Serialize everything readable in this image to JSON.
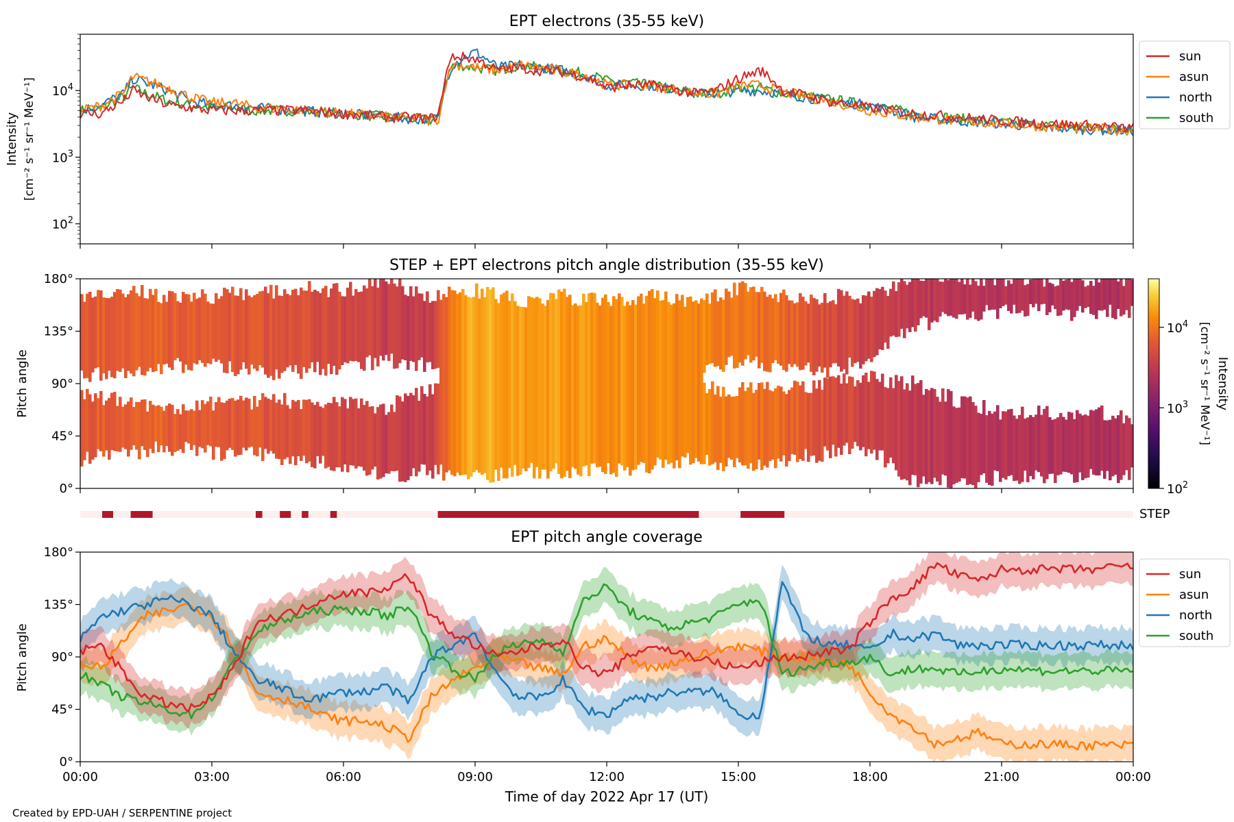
{
  "footer": "Created by EPD-UAH / SERPENTINE project",
  "x_axis": {
    "label": "Time of day 2022 Apr 17 (UT)",
    "range_hours": [
      0,
      24
    ],
    "ticks": [
      {
        "h": 0,
        "label": "00:00"
      },
      {
        "h": 3,
        "label": "03:00"
      },
      {
        "h": 6,
        "label": "06:00"
      },
      {
        "h": 9,
        "label": "09:00"
      },
      {
        "h": 12,
        "label": "12:00"
      },
      {
        "h": 15,
        "label": "15:00"
      },
      {
        "h": 18,
        "label": "18:00"
      },
      {
        "h": 21,
        "label": "21:00"
      },
      {
        "h": 24,
        "label": "00:00"
      }
    ]
  },
  "colors": {
    "sun": "#d62728",
    "asun": "#ff7f0e",
    "north": "#1f77b4",
    "south": "#2ca02c",
    "step_on": "#b2182b",
    "step_off": "#fdf0ec"
  },
  "angle_ticks": [
    {
      "v": 0,
      "label": "0°"
    },
    {
      "v": 45,
      "label": "45°"
    },
    {
      "v": 90,
      "label": "90°"
    },
    {
      "v": 135,
      "label": "135°"
    },
    {
      "v": 180,
      "label": "180°"
    }
  ],
  "chart_data": [
    {
      "id": "intensity",
      "type": "line",
      "title": "EPT electrons (35-55 keV)",
      "ylabel_line1": "Intensity",
      "ylabel_line2": "[cm⁻² s⁻¹ sr⁻¹ MeV⁻¹]",
      "yscale": "log",
      "ylim": [
        50,
        70000
      ],
      "y_ticks": [
        {
          "v": 100,
          "base": "10",
          "exp": "2"
        },
        {
          "v": 1000,
          "base": "10",
          "exp": "3"
        },
        {
          "v": 10000,
          "base": "10",
          "exp": "4"
        }
      ],
      "legend_position": "outside-right",
      "x_hours": [
        0,
        0.5,
        1.0,
        1.2,
        1.5,
        2.0,
        2.5,
        3.0,
        3.5,
        4.0,
        5.0,
        6.0,
        7.0,
        8.0,
        8.2,
        8.5,
        9.0,
        9.5,
        10.0,
        10.5,
        11.0,
        11.5,
        12.0,
        12.5,
        13.0,
        14.0,
        14.5,
        15.0,
        15.5,
        16.0,
        17.0,
        18.0,
        19.0,
        20.0,
        21.0,
        22.0,
        23.0,
        24.0
      ],
      "series": [
        {
          "name": "sun",
          "values": [
            4500,
            4500,
            7000,
            10000,
            8000,
            6000,
            5500,
            5000,
            5000,
            5000,
            5000,
            4500,
            4000,
            3800,
            4500,
            33000,
            30000,
            20000,
            22000,
            20000,
            19000,
            16000,
            11000,
            12000,
            12000,
            9000,
            10000,
            15000,
            20000,
            10000,
            7000,
            5500,
            4500,
            4000,
            3500,
            3200,
            3000,
            2700
          ]
        },
        {
          "name": "asun",
          "values": [
            5000,
            6000,
            9000,
            16000,
            14000,
            11000,
            8000,
            6500,
            6500,
            5500,
            5200,
            4500,
            4000,
            3600,
            3800,
            25000,
            22000,
            20000,
            24000,
            22000,
            19000,
            17000,
            12000,
            12000,
            12000,
            9000,
            9000,
            12000,
            12000,
            9500,
            7000,
            5000,
            4000,
            3500,
            3200,
            2900,
            2700,
            2500
          ]
        },
        {
          "name": "north",
          "values": [
            5000,
            6000,
            9000,
            15000,
            13000,
            10000,
            7000,
            6000,
            6000,
            5500,
            5000,
            4500,
            4000,
            3600,
            4000,
            25000,
            38000,
            22000,
            24000,
            22000,
            20000,
            17000,
            12000,
            12000,
            12000,
            9000,
            9000,
            10000,
            10000,
            9000,
            7000,
            6000,
            4000,
            3500,
            3200,
            2800,
            2600,
            2500
          ]
        },
        {
          "name": "south",
          "values": [
            5000,
            5500,
            8000,
            11000,
            9000,
            7000,
            6000,
            5500,
            5500,
            5000,
            5000,
            4500,
            4000,
            3600,
            4000,
            25000,
            22000,
            20000,
            24000,
            22000,
            20000,
            18000,
            14000,
            13000,
            12000,
            9000,
            9000,
            11000,
            11000,
            9000,
            7500,
            6000,
            4500,
            3800,
            3300,
            3000,
            2700,
            2800
          ]
        }
      ]
    },
    {
      "id": "pad",
      "type": "heatmap",
      "title": "STEP + EPT electrons pitch angle distribution (35-55 keV)",
      "ylabel": "Pitch angle",
      "ylim": [
        0,
        180
      ],
      "colorbar": {
        "label_line1": "Intensity",
        "label_line2": "[cm⁻² s⁻¹ sr⁻¹ MeV⁻¹]",
        "scale": "log",
        "range": [
          100,
          40000
        ],
        "ticks": [
          {
            "v": 100,
            "base": "10",
            "exp": "2"
          },
          {
            "v": 1000,
            "base": "10",
            "exp": "3"
          },
          {
            "v": 10000,
            "base": "10",
            "exp": "4"
          }
        ]
      },
      "x_hours": [
        0,
        1,
        2,
        3,
        4,
        5,
        6,
        7,
        8,
        9,
        10,
        11,
        12,
        13,
        14,
        15,
        16,
        17,
        18,
        19,
        20,
        21,
        22,
        23,
        24
      ],
      "upper_band": [
        [
          95,
          165
        ],
        [
          100,
          170
        ],
        [
          105,
          165
        ],
        [
          105,
          165
        ],
        [
          100,
          168
        ],
        [
          100,
          172
        ],
        [
          105,
          170
        ],
        [
          110,
          178
        ],
        [
          105,
          165
        ],
        [
          105,
          170
        ],
        [
          95,
          160
        ],
        [
          95,
          165
        ],
        [
          90,
          160
        ],
        [
          95,
          165
        ],
        [
          100,
          160
        ],
        [
          110,
          172
        ],
        [
          105,
          165
        ],
        [
          100,
          165
        ],
        [
          110,
          165
        ],
        [
          140,
          180
        ],
        [
          148,
          180
        ],
        [
          152,
          180
        ],
        [
          152,
          180
        ],
        [
          150,
          180
        ],
        [
          152,
          178
        ]
      ],
      "lower_band": [
        [
          25,
          80
        ],
        [
          30,
          75
        ],
        [
          35,
          70
        ],
        [
          30,
          72
        ],
        [
          30,
          75
        ],
        [
          25,
          75
        ],
        [
          20,
          75
        ],
        [
          10,
          70
        ],
        [
          15,
          85
        ],
        [
          10,
          90
        ],
        [
          15,
          90
        ],
        [
          15,
          92
        ],
        [
          15,
          90
        ],
        [
          20,
          90
        ],
        [
          25,
          85
        ],
        [
          20,
          85
        ],
        [
          25,
          85
        ],
        [
          30,
          90
        ],
        [
          35,
          95
        ],
        [
          5,
          90
        ],
        [
          5,
          75
        ],
        [
          10,
          65
        ],
        [
          10,
          65
        ],
        [
          10,
          65
        ],
        [
          12,
          62
        ]
      ],
      "gap_spans_hours": [
        [
          8.2,
          14.2
        ]
      ],
      "intensity": [
        6000,
        8000,
        7000,
        6500,
        6000,
        5500,
        4500,
        3500,
        3500,
        18000,
        16000,
        15000,
        14000,
        13000,
        12000,
        10000,
        8000,
        5000,
        4000,
        3000,
        2800,
        2600,
        2500,
        2500,
        2500
      ]
    },
    {
      "id": "step",
      "type": "bar",
      "label": "STEP",
      "active_spans_hours": [
        [
          0.5,
          0.75
        ],
        [
          1.15,
          1.65
        ],
        [
          4.0,
          4.15
        ],
        [
          4.55,
          4.8
        ],
        [
          5.05,
          5.2
        ],
        [
          5.7,
          5.85
        ],
        [
          8.15,
          14.1
        ],
        [
          15.05,
          16.05
        ]
      ]
    },
    {
      "id": "coverage",
      "type": "line",
      "title": "EPT pitch angle coverage",
      "ylabel": "Pitch angle",
      "ylim": [
        0,
        180
      ],
      "legend_position": "outside-right",
      "x_hours": [
        0,
        0.5,
        1,
        1.5,
        2,
        2.5,
        3,
        3.5,
        4,
        4.5,
        5,
        5.5,
        6,
        6.5,
        7,
        7.5,
        8,
        8.5,
        9,
        9.5,
        10,
        10.5,
        11,
        11.5,
        12,
        12.5,
        13,
        13.5,
        14,
        14.5,
        15,
        15.5,
        16,
        16.5,
        17,
        17.5,
        18,
        18.5,
        19,
        19.5,
        20,
        20.5,
        21,
        22,
        23,
        24
      ],
      "band_halfwidth_deg": 15,
      "series": [
        {
          "name": "sun",
          "values": [
            95,
            100,
            75,
            55,
            50,
            45,
            55,
            80,
            120,
            125,
            130,
            140,
            145,
            145,
            150,
            160,
            125,
            110,
            100,
            90,
            95,
            100,
            105,
            80,
            75,
            90,
            100,
            95,
            90,
            85,
            80,
            85,
            90,
            90,
            95,
            95,
            120,
            140,
            150,
            170,
            160,
            155,
            165,
            165,
            165,
            168
          ]
        },
        {
          "name": "asun",
          "values": [
            85,
            80,
            105,
            125,
            130,
            135,
            125,
            100,
            60,
            55,
            50,
            40,
            35,
            35,
            30,
            20,
            55,
            70,
            80,
            90,
            85,
            80,
            75,
            100,
            105,
            90,
            80,
            85,
            90,
            95,
            100,
            95,
            90,
            90,
            85,
            85,
            60,
            40,
            30,
            15,
            20,
            25,
            15,
            15,
            14,
            14
          ]
        },
        {
          "name": "north",
          "values": [
            105,
            125,
            130,
            135,
            140,
            135,
            125,
            95,
            70,
            65,
            55,
            55,
            60,
            60,
            65,
            50,
            90,
            100,
            110,
            75,
            55,
            55,
            70,
            45,
            40,
            55,
            55,
            60,
            60,
            60,
            40,
            40,
            155,
            110,
            100,
            100,
            95,
            110,
            105,
            110,
            100,
            100,
            100,
            100,
            100,
            100
          ]
        },
        {
          "name": "south",
          "values": [
            75,
            65,
            55,
            50,
            45,
            40,
            55,
            85,
            110,
            120,
            125,
            130,
            130,
            130,
            125,
            135,
            95,
            80,
            70,
            95,
            100,
            105,
            95,
            140,
            150,
            130,
            120,
            115,
            120,
            125,
            135,
            140,
            75,
            80,
            85,
            85,
            90,
            75,
            80,
            80,
            75,
            78,
            80,
            78,
            78,
            78
          ]
        }
      ]
    }
  ]
}
